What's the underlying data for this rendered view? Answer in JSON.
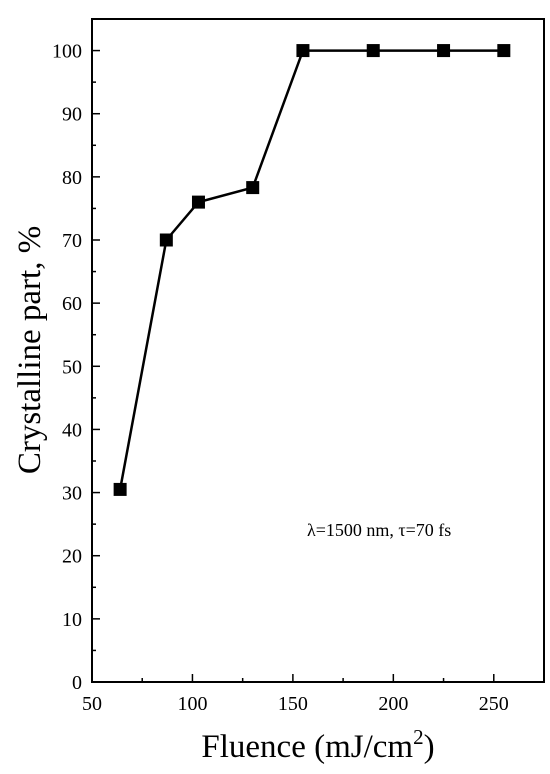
{
  "chart_data": {
    "type": "line",
    "title": "",
    "xlabel": "Fluence (mJ/cm",
    "xlabel_superscript": "2",
    "xlabel_suffix": ")",
    "ylabel": "Crystalline part, %",
    "xlim": [
      50,
      275
    ],
    "ylim": [
      0,
      105
    ],
    "xticks": [
      50,
      100,
      150,
      200,
      250
    ],
    "yticks": [
      0,
      10,
      20,
      30,
      40,
      50,
      60,
      70,
      80,
      90,
      100
    ],
    "grid": false,
    "legend": "none",
    "annotation": "λ=1500 nm, τ=70 fs",
    "series": [
      {
        "x": [
          64,
          87,
          103,
          130,
          155,
          190,
          225,
          255
        ],
        "y": [
          30.5,
          70,
          76,
          78.3,
          100,
          100,
          100,
          100
        ],
        "color": "#000000",
        "marker": "square"
      }
    ]
  }
}
